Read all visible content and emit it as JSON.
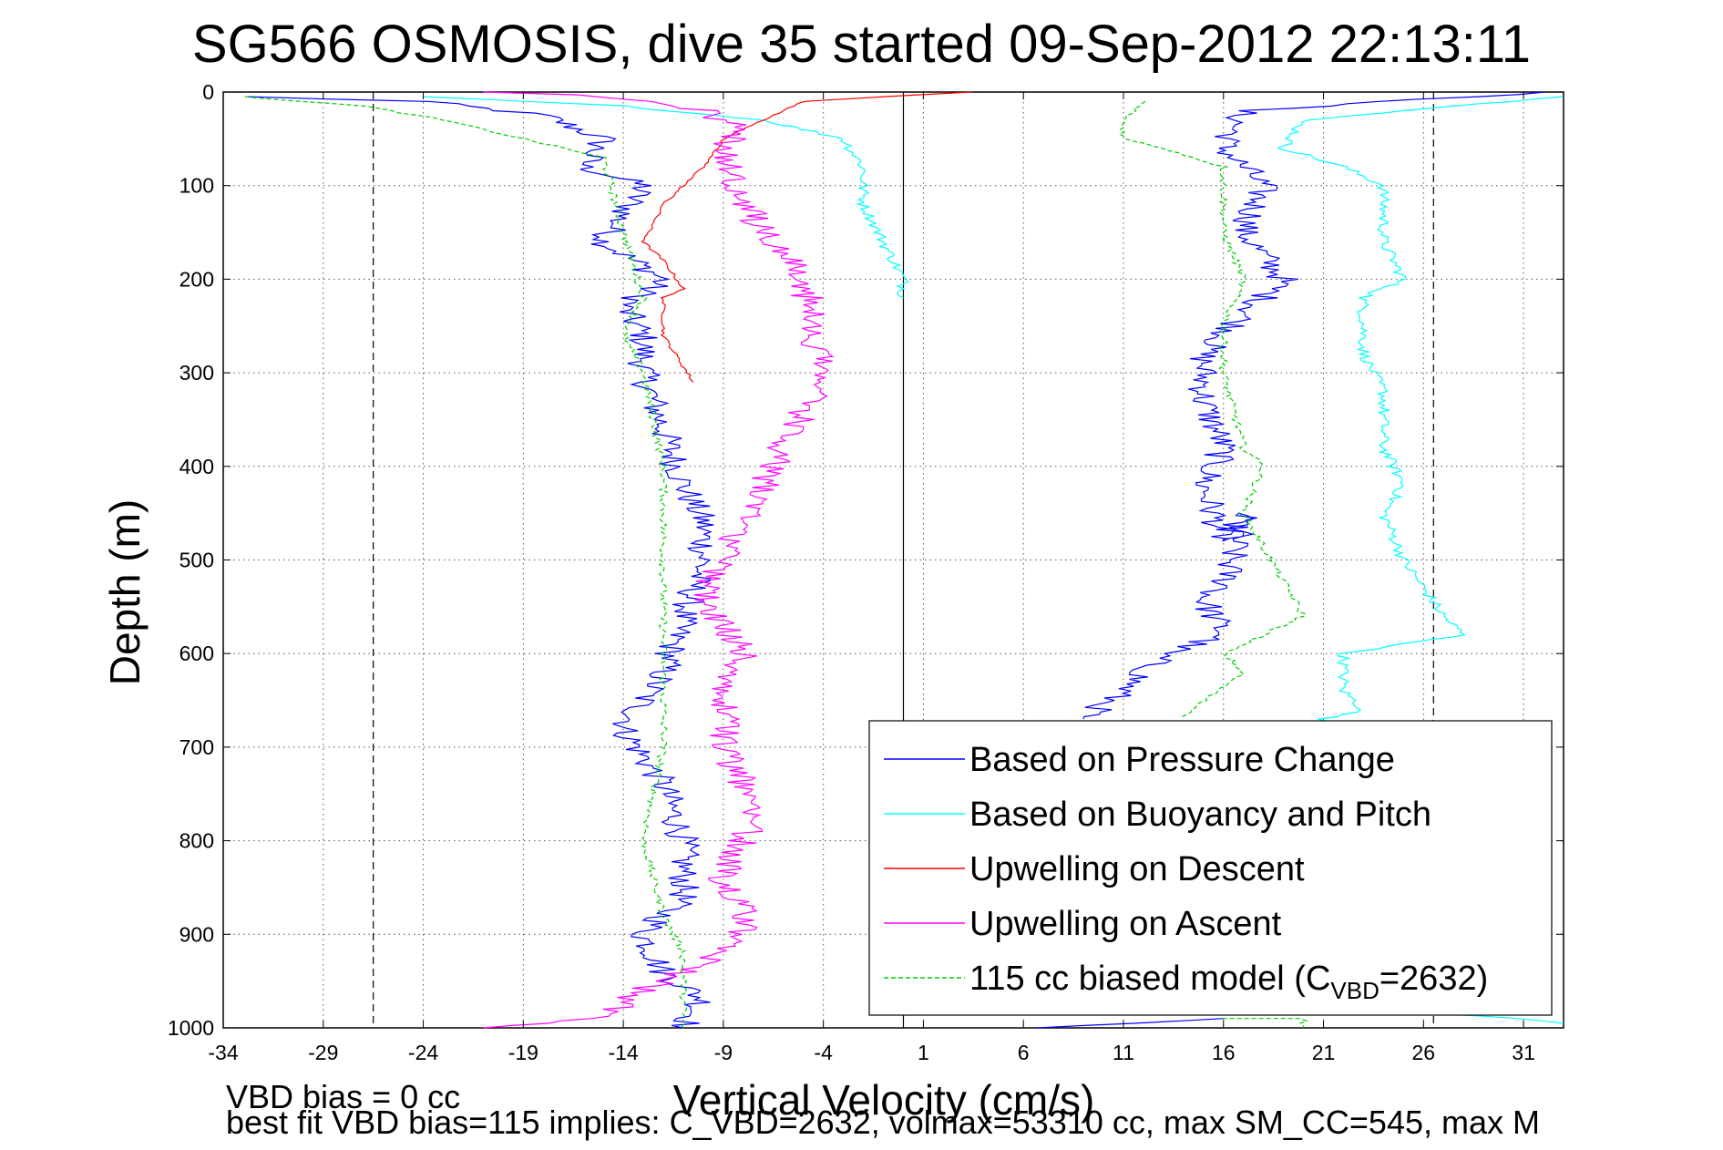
{
  "chart_data": {
    "type": "line",
    "title": "SG566 OSMOSIS, dive 35 started 09-Sep-2012 22:13:11",
    "xlabel": "Vertical Velocity (cm/s)",
    "ylabel": "Depth (m)",
    "xlim": [
      -34,
      33
    ],
    "ylim": [
      0,
      1000
    ],
    "y_reversed": true,
    "grid": true,
    "x_ticks": [
      "-34",
      "-29",
      "-24",
      "-19",
      "-14",
      "-9",
      "-4",
      "1",
      "6",
      "11",
      "16",
      "21",
      "26",
      "31"
    ],
    "y_ticks": [
      "0",
      "100",
      "200",
      "300",
      "400",
      "500",
      "600",
      "700",
      "800",
      "900",
      "1000"
    ],
    "reference_lines": [
      {
        "x": -26.5,
        "style": "dashed"
      },
      {
        "x": 0,
        "style": "solid"
      },
      {
        "x": 26.5,
        "style": "dashed"
      }
    ],
    "legend_position": "bottom-right",
    "series": [
      {
        "name": "Based on Pressure Change",
        "color": "#0000ff",
        "style": "solid",
        "branches": [
          {
            "x": [
              -33.0,
              -24,
              -18,
              -15,
              -16,
              -13,
              -15,
              -12,
              -14,
              -13,
              -13,
              -12,
              -11,
              -10,
              -10,
              -11,
              -12,
              -14,
              -12,
              -11,
              -11,
              -13,
              -12,
              -10,
              -11
            ],
            "y": [
              5,
              10,
              25,
              50,
              80,
              100,
              160,
              200,
              230,
              260,
              300,
              360,
              420,
              460,
              500,
              560,
              620,
              680,
              740,
              800,
              860,
              900,
              940,
              970,
              1000
            ]
          },
          {
            "x": [
              32,
              17,
              16,
              18,
              17,
              19,
              17,
              15,
              15,
              16,
              15,
              16,
              17,
              16,
              15,
              16,
              13,
              11,
              9
            ],
            "y": [
              0,
              20,
              60,
              100,
              150,
              200,
              240,
              280,
              330,
              380,
              420,
              480,
              450,
              530,
              540,
              580,
              600,
              640,
              670
            ]
          },
          {
            "x": [
              6,
              11,
              16
            ],
            "y": [
              1000,
              995,
              990
            ]
          }
        ]
      },
      {
        "name": "Based on Buoyancy and Pitch",
        "color": "#00ffff",
        "style": "solid",
        "branches": [
          {
            "x": [
              -24,
              -14,
              -7,
              -3,
              -2,
              -2,
              -1,
              0,
              0
            ],
            "y": [
              5,
              15,
              30,
              50,
              80,
              120,
              160,
              200,
              220
            ]
          },
          {
            "x": [
              33,
              20,
              19,
              22,
              24,
              24,
              25,
              23,
              23,
              24,
              24,
              25,
              24,
              25,
              27,
              28,
              22,
              22,
              23,
              21,
              21
            ],
            "y": [
              5,
              30,
              60,
              80,
              100,
              160,
              200,
              220,
              280,
              320,
              380,
              420,
              450,
              500,
              560,
              580,
              600,
              640,
              660,
              670,
              680
            ]
          },
          {
            "x": [
              27,
              31,
              33
            ],
            "y": [
              985,
              990,
              995
            ]
          }
        ]
      },
      {
        "name": "Upwelling on Descent",
        "color": "#ff0000",
        "style": "solid",
        "branches": [
          {
            "x": [
              3.5,
              -1,
              -5,
              -7,
              -9,
              -10,
              -11,
              -12,
              -13,
              -12,
              -11,
              -12,
              -12,
              -10.5
            ],
            "y": [
              0,
              5,
              10,
              30,
              50,
              80,
              100,
              120,
              160,
              180,
              210,
              220,
              260,
              310
            ]
          }
        ]
      },
      {
        "name": "Upwelling on Ascent",
        "color": "#ff00ff",
        "style": "solid",
        "branches": [
          {
            "x": [
              -21,
              -15,
              -13,
              -10,
              -8,
              -8,
              -9,
              -8,
              -7,
              -8,
              -9,
              -9,
              -8,
              -10,
              -8,
              -6,
              -4,
              -5,
              -8,
              -9,
              -8,
              -10,
              -12,
              -15,
              -17,
              -21
            ],
            "y": [
              1000,
              990,
              960,
              930,
              900,
              870,
              840,
              800,
              760,
              740,
              700,
              640,
              600,
              540,
              460,
              380,
              300,
              200,
              120,
              60,
              40,
              20,
              10,
              5,
              3,
              0
            ]
          }
        ]
      },
      {
        "name": "115 cc biased model (CVBD=2632)",
        "color": "#00cc00",
        "style": "dashed",
        "branches": [
          {
            "x": [
              -33.0,
              -27,
              -23,
              -19,
              -15,
              -14,
              -13,
              -14,
              -13,
              -12,
              -12,
              -12,
              -12,
              -13,
              -12,
              -11,
              -11
            ],
            "y": [
              5,
              15,
              30,
              50,
              70,
              150,
              220,
              260,
              300,
              400,
              500,
              600,
              700,
              800,
              880,
              920,
              1000
            ]
          },
          {
            "x": [
              12,
              11,
              11,
              13,
              16,
              16,
              17,
              16,
              16,
              17,
              18,
              17,
              20,
              16,
              17,
              15,
              14
            ],
            "y": [
              10,
              30,
              50,
              60,
              80,
              150,
              200,
              250,
              300,
              380,
              400,
              450,
              560,
              600,
              620,
              650,
              670
            ]
          },
          {
            "x": [
              16,
              20,
              20
            ],
            "y": [
              990,
              990,
              1000
            ]
          }
        ]
      }
    ]
  },
  "legend": {
    "items": [
      {
        "label": "Based on Pressure Change",
        "color": "#0000ff",
        "style": "solid"
      },
      {
        "label": "Based on Buoyancy and Pitch",
        "color": "#00ffff",
        "style": "solid"
      },
      {
        "label": "Upwelling on Descent",
        "color": "#ff0000",
        "style": "solid"
      },
      {
        "label": "Upwelling on Ascent",
        "color": "#ff00ff",
        "style": "solid"
      },
      {
        "label": "115 cc biased model (C",
        "sub": "VBD",
        "suffix": "=2632)",
        "color": "#00cc00",
        "style": "dashed"
      }
    ]
  },
  "footer": {
    "line1": "VBD bias = 0 cc",
    "line2": "best fit VBD bias=115 implies: C_VBD=2632, volmax=53310 cc, max SM_CC=545, max M"
  }
}
